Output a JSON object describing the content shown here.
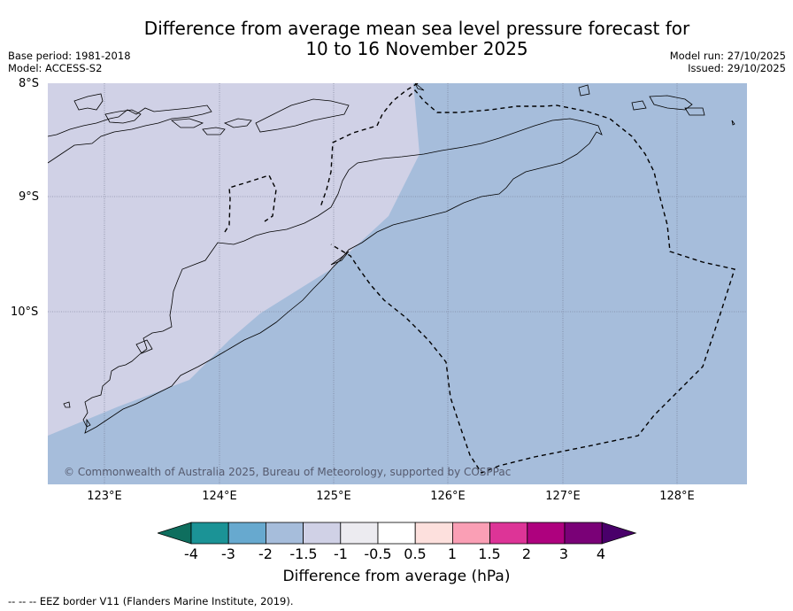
{
  "title": {
    "line1": "Difference from average mean sea level pressure forecast for",
    "line2": "10 to 16 November 2025"
  },
  "meta": {
    "base_period": "Base period: 1981-2018",
    "model": "Model: ACCESS-S2",
    "model_run": "Model run: 27/10/2025",
    "issued": "Issued: 29/10/2025"
  },
  "map": {
    "lat_labels": [
      "8°S",
      "9°S",
      "10°S"
    ],
    "lon_labels": [
      "123°E",
      "124°E",
      "125°E",
      "126°E",
      "127°E",
      "128°E"
    ],
    "copyright": "© Commonwealth of Australia 2025, Bureau of Meteorology, supported by COSPPac",
    "region_colors": {
      "band_-1.5_to_-1": "#d0d1e6",
      "band_-2_to_-1.5": "#a6bddb"
    }
  },
  "colorbar": {
    "ticks": [
      "-4",
      "-3",
      "-2",
      "-1.5",
      "-1",
      "-0.5",
      "0.5",
      "1",
      "1.5",
      "2",
      "3",
      "4"
    ],
    "colors": [
      "#0e6e5e",
      "#1b9396",
      "#67a9cf",
      "#a6bddb",
      "#d0d1e6",
      "#ecebf0",
      "#ffffff",
      "#fde0dd",
      "#fa9fb5",
      "#dd3497",
      "#ae017e",
      "#7a0177",
      "#49006a"
    ],
    "label": "Difference from average (hPa)"
  },
  "footer": {
    "legend_symbol": "--  --  --",
    "legend_text": "EEZ border V11 (Flanders Marine Institute, 2019)."
  }
}
